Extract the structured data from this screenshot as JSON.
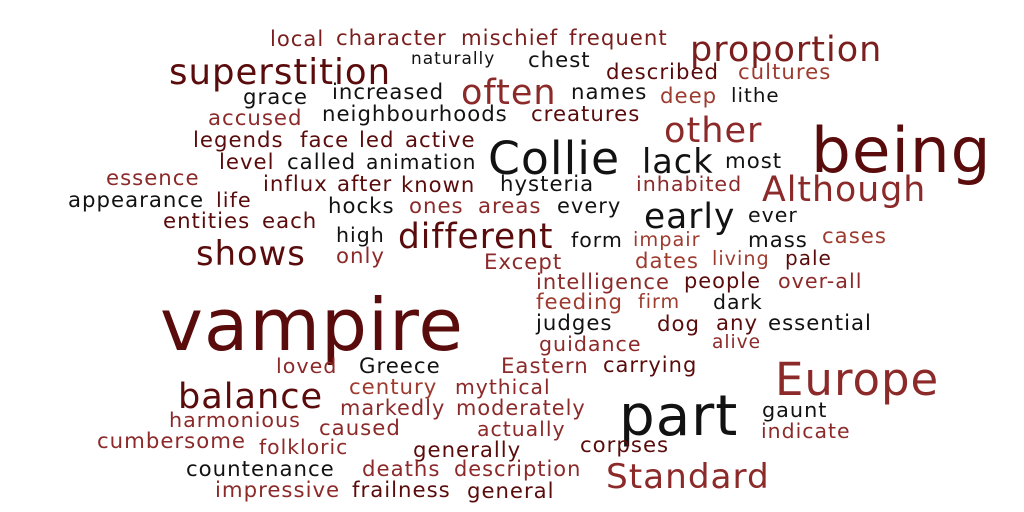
{
  "palette": {
    "background": "#ffffff",
    "maroon": "#5a0b0b",
    "brown": "#7a1e1e",
    "red": "#8c2a2a",
    "rust": "#9e3b2f",
    "black": "#121212"
  },
  "words": [
    {
      "text": "local",
      "c": "brown"
    },
    {
      "text": "character",
      "c": "brown"
    },
    {
      "text": "mischief",
      "c": "brown"
    },
    {
      "text": "frequent",
      "c": "brown"
    },
    {
      "text": "naturally",
      "c": "black"
    },
    {
      "text": "chest",
      "c": "black"
    },
    {
      "text": "proportion",
      "c": "brown"
    },
    {
      "text": "superstition",
      "c": "maroon"
    },
    {
      "text": "often",
      "c": "red"
    },
    {
      "text": "described",
      "c": "maroon"
    },
    {
      "text": "cultures",
      "c": "rust"
    },
    {
      "text": "grace",
      "c": "black"
    },
    {
      "text": "increased",
      "c": "black"
    },
    {
      "text": "names",
      "c": "black"
    },
    {
      "text": "deep",
      "c": "rust"
    },
    {
      "text": "lithe",
      "c": "black"
    },
    {
      "text": "accused",
      "c": "red"
    },
    {
      "text": "neighbourhoods",
      "c": "black"
    },
    {
      "text": "creatures",
      "c": "maroon"
    },
    {
      "text": "other",
      "c": "red"
    },
    {
      "text": "being",
      "c": "maroon"
    },
    {
      "text": "legends",
      "c": "maroon"
    },
    {
      "text": "face",
      "c": "maroon"
    },
    {
      "text": "led",
      "c": "maroon"
    },
    {
      "text": "active",
      "c": "maroon"
    },
    {
      "text": "Collie",
      "c": "black"
    },
    {
      "text": "lack",
      "c": "black"
    },
    {
      "text": "most",
      "c": "black"
    },
    {
      "text": "level",
      "c": "maroon"
    },
    {
      "text": "called",
      "c": "black"
    },
    {
      "text": "animation",
      "c": "black"
    },
    {
      "text": "essence",
      "c": "red"
    },
    {
      "text": "influx",
      "c": "maroon"
    },
    {
      "text": "after",
      "c": "maroon"
    },
    {
      "text": "known",
      "c": "maroon"
    },
    {
      "text": "hysteria",
      "c": "black"
    },
    {
      "text": "inhabited",
      "c": "red"
    },
    {
      "text": "Although",
      "c": "red"
    },
    {
      "text": "appearance",
      "c": "black"
    },
    {
      "text": "life",
      "c": "maroon"
    },
    {
      "text": "hocks",
      "c": "black"
    },
    {
      "text": "ones",
      "c": "red"
    },
    {
      "text": "areas",
      "c": "red"
    },
    {
      "text": "every",
      "c": "black"
    },
    {
      "text": "early",
      "c": "black"
    },
    {
      "text": "ever",
      "c": "black"
    },
    {
      "text": "entities",
      "c": "maroon"
    },
    {
      "text": "each",
      "c": "maroon"
    },
    {
      "text": "high",
      "c": "black"
    },
    {
      "text": "different",
      "c": "maroon"
    },
    {
      "text": "form",
      "c": "black"
    },
    {
      "text": "impair",
      "c": "rust"
    },
    {
      "text": "mass",
      "c": "black"
    },
    {
      "text": "cases",
      "c": "rust"
    },
    {
      "text": "shows",
      "c": "maroon"
    },
    {
      "text": "only",
      "c": "red"
    },
    {
      "text": "Except",
      "c": "red"
    },
    {
      "text": "dates",
      "c": "rust"
    },
    {
      "text": "living",
      "c": "rust"
    },
    {
      "text": "pale",
      "c": "maroon"
    },
    {
      "text": "intelligence",
      "c": "red"
    },
    {
      "text": "people",
      "c": "maroon"
    },
    {
      "text": "over-all",
      "c": "red"
    },
    {
      "text": "vampire",
      "c": "maroon"
    },
    {
      "text": "feeding",
      "c": "rust"
    },
    {
      "text": "firm",
      "c": "rust"
    },
    {
      "text": "dark",
      "c": "black"
    },
    {
      "text": "judges",
      "c": "black"
    },
    {
      "text": "dog",
      "c": "maroon"
    },
    {
      "text": "any",
      "c": "maroon"
    },
    {
      "text": "essential",
      "c": "black"
    },
    {
      "text": "guidance",
      "c": "red"
    },
    {
      "text": "alive",
      "c": "red"
    },
    {
      "text": "loved",
      "c": "red"
    },
    {
      "text": "Greece",
      "c": "black"
    },
    {
      "text": "Eastern",
      "c": "red"
    },
    {
      "text": "carrying",
      "c": "maroon"
    },
    {
      "text": "Europe",
      "c": "red"
    },
    {
      "text": "balance",
      "c": "maroon"
    },
    {
      "text": "century",
      "c": "rust"
    },
    {
      "text": "mythical",
      "c": "red"
    },
    {
      "text": "part",
      "c": "black"
    },
    {
      "text": "harmonious",
      "c": "red"
    },
    {
      "text": "markedly",
      "c": "red"
    },
    {
      "text": "moderately",
      "c": "red"
    },
    {
      "text": "gaunt",
      "c": "black"
    },
    {
      "text": "caused",
      "c": "red"
    },
    {
      "text": "actually",
      "c": "red"
    },
    {
      "text": "indicate",
      "c": "red"
    },
    {
      "text": "cumbersome",
      "c": "red"
    },
    {
      "text": "folkloric",
      "c": "red"
    },
    {
      "text": "generally",
      "c": "maroon"
    },
    {
      "text": "corpses",
      "c": "maroon"
    },
    {
      "text": "countenance",
      "c": "black"
    },
    {
      "text": "deaths",
      "c": "red"
    },
    {
      "text": "description",
      "c": "red"
    },
    {
      "text": "Standard",
      "c": "red"
    },
    {
      "text": "impressive",
      "c": "red"
    },
    {
      "text": "frailness",
      "c": "maroon"
    },
    {
      "text": "general",
      "c": "maroon"
    }
  ]
}
